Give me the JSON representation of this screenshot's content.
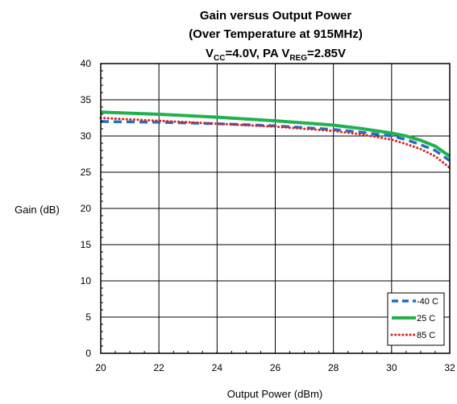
{
  "chart_data": {
    "type": "line",
    "title": "Gain versus Output Power",
    "subtitle": "(Over Temperature at 915MHz)",
    "subtitle2": {
      "v": "V",
      "v_sub": "CC",
      "v_eq": "=4.0V, PA V",
      "reg_sub": "REG",
      "reg_eq": "=2.85V"
    },
    "xlabel": "Output Power (dBm)",
    "ylabel": "Gain (dB)",
    "xlim": [
      20,
      32
    ],
    "ylim": [
      0,
      40
    ],
    "xticks": [
      20,
      22,
      24,
      26,
      28,
      30,
      32
    ],
    "yticks": [
      0,
      5,
      10,
      15,
      20,
      25,
      30,
      35,
      40
    ],
    "grid": true,
    "legend_position": "bottom-right",
    "series": [
      {
        "name": "-40 C",
        "color": "#1f6fc5",
        "style": "dashed",
        "x": [
          20,
          22,
          24,
          26,
          28,
          29,
          30,
          30.5,
          31,
          31.5,
          32
        ],
        "y": [
          32.0,
          31.9,
          31.7,
          31.4,
          30.9,
          30.5,
          30.0,
          29.5,
          28.8,
          28.0,
          26.6
        ]
      },
      {
        "name": "25 C",
        "color": "#22b14c",
        "style": "solid",
        "x": [
          20,
          22,
          24,
          26,
          28,
          29,
          30,
          30.5,
          31,
          31.5,
          32
        ],
        "y": [
          33.3,
          33.0,
          32.6,
          32.1,
          31.5,
          31.0,
          30.4,
          30.0,
          29.4,
          28.6,
          27.2
        ]
      },
      {
        "name": "85 C",
        "color": "#e02020",
        "style": "dotted",
        "x": [
          20,
          22,
          24,
          26,
          28,
          29,
          30,
          30.5,
          31,
          31.5,
          32
        ],
        "y": [
          32.5,
          32.1,
          31.7,
          31.3,
          30.7,
          30.2,
          29.5,
          28.9,
          28.2,
          27.2,
          25.6
        ]
      }
    ]
  }
}
